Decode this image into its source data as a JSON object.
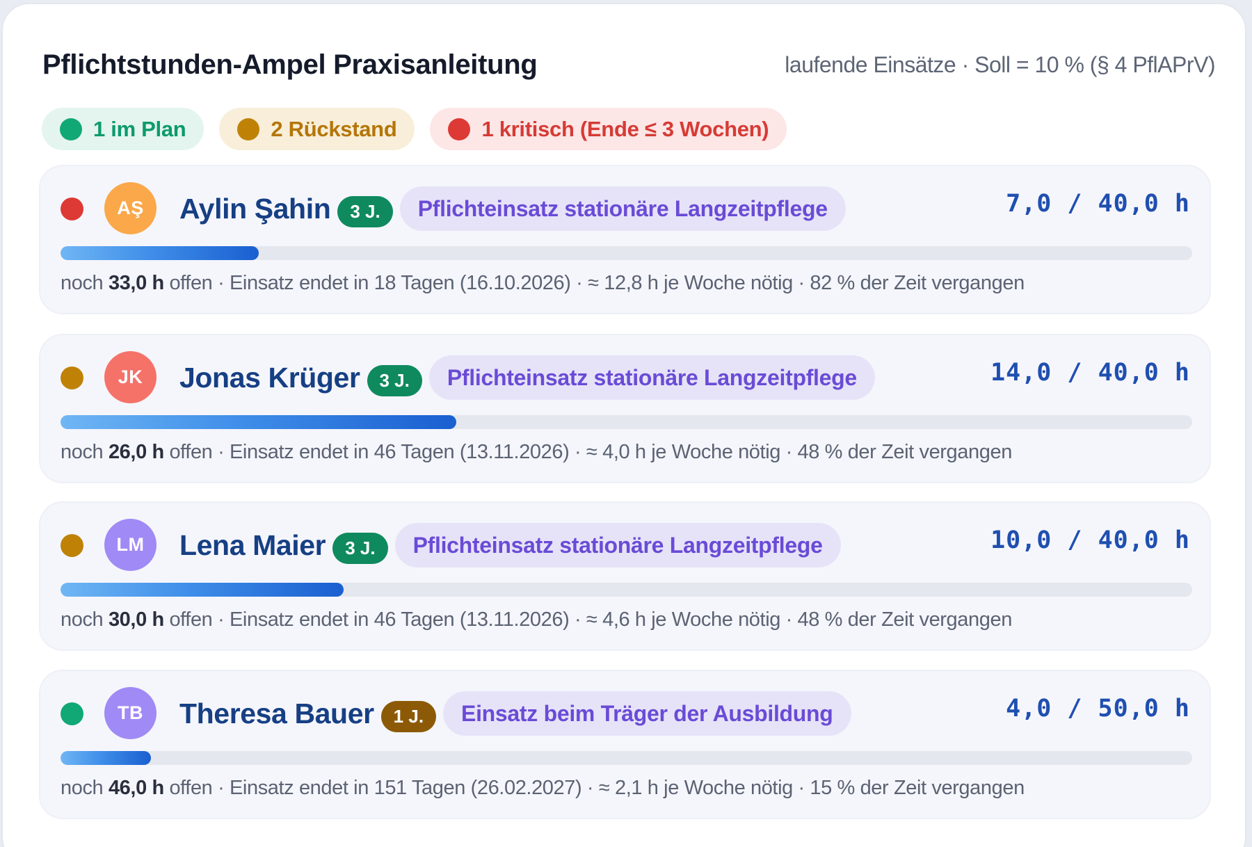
{
  "header": {
    "title": "Pflichtstunden-Ampel Praxisanleitung",
    "subtitle": "laufende Einsätze · Soll = 10 % (§ 4 PflAPrV)"
  },
  "summary": [
    {
      "label": "1 im Plan",
      "status": "green"
    },
    {
      "label": "2 Rückstand",
      "status": "amber"
    },
    {
      "label": "1 kritisch (Ende ≤ 3 Wochen)",
      "status": "red"
    }
  ],
  "colors": {
    "green": "#11a876",
    "amber": "#bf8207",
    "red": "#dd3a35",
    "accent_blue": "#1f4fb0",
    "pill_purple": "#6a4bd6"
  },
  "students": [
    {
      "status": "red",
      "initials": "AŞ",
      "avatar_color": "#fba84a",
      "name": "Aylin Şahin",
      "year": "3 J.",
      "assignment": "Pflichteinsatz stationäre Langzeitpflege",
      "hours": "7,0 / 40,0 h",
      "progress": 0.175,
      "detail_prefix": "noch ",
      "open_hours": "33,0 h",
      "detail_suffix": " offen · Einsatz endet in 18 Tagen (16.10.2026) · ≈ 12,8 h je Woche nötig · 82 % der Zeit vergangen"
    },
    {
      "status": "amber",
      "initials": "JK",
      "avatar_color": "#f57269",
      "name": "Jonas Krüger",
      "year": "3 J.",
      "assignment": "Pflichteinsatz stationäre Langzeitpflege",
      "hours": "14,0 / 40,0 h",
      "progress": 0.35,
      "detail_prefix": "noch ",
      "open_hours": "26,0 h",
      "detail_suffix": " offen · Einsatz endet in 46 Tagen (13.11.2026) · ≈ 4,0 h je Woche nötig · 48 % der Zeit vergangen"
    },
    {
      "status": "amber",
      "initials": "LM",
      "avatar_color": "#a08af5",
      "name": "Lena Maier",
      "year": "3 J.",
      "assignment": "Pflichteinsatz stationäre Langzeitpflege",
      "hours": "10,0 / 40,0 h",
      "progress": 0.25,
      "detail_prefix": "noch ",
      "open_hours": "30,0 h",
      "detail_suffix": " offen · Einsatz endet in 46 Tagen (13.11.2026) · ≈ 4,6 h je Woche nötig · 48 % der Zeit vergangen"
    },
    {
      "status": "green",
      "initials": "TB",
      "avatar_color": "#a08af5",
      "name": "Theresa Bauer",
      "year": "1 J.",
      "assignment": "Einsatz beim Träger der Ausbildung",
      "hours": "4,0 / 50,0 h",
      "progress": 0.08,
      "detail_prefix": "noch ",
      "open_hours": "46,0 h",
      "detail_suffix": " offen · Einsatz endet in 151 Tagen (26.02.2027) · ≈ 2,1 h je Woche nötig · 15 % der Zeit vergangen"
    }
  ]
}
